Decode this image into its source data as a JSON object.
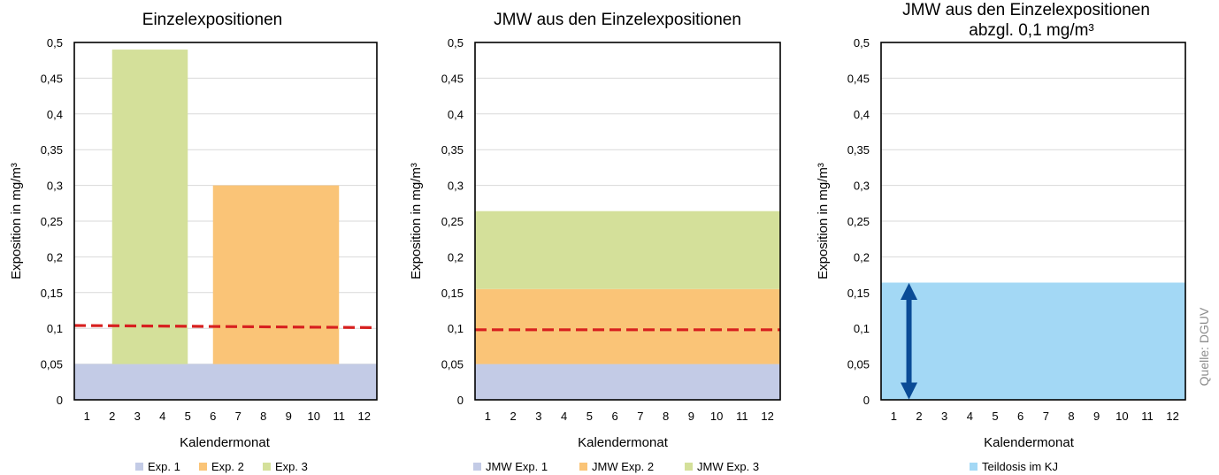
{
  "source": "Quelle: DGUV",
  "chart_data": [
    {
      "type": "bar",
      "title": "Einzelexpositionen",
      "xlabel": "Kalendermonat",
      "ylabel": "Exposition in mg/m³",
      "ylim": [
        0,
        0.5
      ],
      "y_ticks": [
        "0",
        "0,05",
        "0,1",
        "0,15",
        "0,2",
        "0,25",
        "0,3",
        "0,35",
        "0,4",
        "0,45",
        "0,5"
      ],
      "x_ticks": [
        "1",
        "2",
        "3",
        "4",
        "5",
        "6",
        "7",
        "8",
        "9",
        "10",
        "11",
        "12"
      ],
      "grid": true,
      "bars": [
        {
          "name": "Exp. 1",
          "color": "#c3cbe6",
          "from_month": 1,
          "to_month": 12,
          "y0": 0,
          "y1": 0.05
        },
        {
          "name": "Exp. 3",
          "color": "#d4e09a",
          "from_month": 3,
          "to_month": 5,
          "y0": 0.05,
          "y1": 0.49
        },
        {
          "name": "Exp. 2",
          "color": "#fac477",
          "from_month": 7,
          "to_month": 11,
          "y0": 0.05,
          "y1": 0.3
        }
      ],
      "reference_line": {
        "color": "#d7201f",
        "y_start": 0.104,
        "y_end": 0.101
      },
      "legend": [
        {
          "label": "Exp. 1",
          "color": "#c3cbe6"
        },
        {
          "label": "Exp. 2",
          "color": "#fac477"
        },
        {
          "label": "Exp. 3",
          "color": "#d4e09a"
        }
      ]
    },
    {
      "type": "area",
      "title": "JMW aus den Einzelexpositionen",
      "xlabel": "Kalendermonat",
      "ylabel": "Exposition in mg/m³",
      "ylim": [
        0,
        0.5
      ],
      "y_ticks": [
        "0",
        "0,05",
        "0,1",
        "0,15",
        "0,2",
        "0,25",
        "0,3",
        "0,35",
        "0,4",
        "0,45",
        "0,5"
      ],
      "x_ticks": [
        "1",
        "2",
        "3",
        "4",
        "5",
        "6",
        "7",
        "8",
        "9",
        "10",
        "11",
        "12"
      ],
      "grid": true,
      "bands": [
        {
          "name": "JMW Exp. 1",
          "color": "#c3cbe6",
          "y0": 0,
          "y1": 0.05
        },
        {
          "name": "JMW Exp. 2",
          "color": "#fac477",
          "y0": 0.05,
          "y1": 0.155
        },
        {
          "name": "JMW Exp. 3",
          "color": "#d4e09a",
          "y0": 0.155,
          "y1": 0.264
        }
      ],
      "reference_line": {
        "color": "#d7201f",
        "y_start": 0.098,
        "y_end": 0.098
      },
      "legend": [
        {
          "label": "JMW Exp. 1",
          "color": "#c3cbe6"
        },
        {
          "label": "JMW Exp. 2",
          "color": "#fac477"
        },
        {
          "label": "JMW Exp. 3",
          "color": "#d4e09a"
        }
      ]
    },
    {
      "type": "area",
      "title": "JMW aus den Einzelexpositionen",
      "subtitle": "abzgl. 0,1 mg/m³",
      "xlabel": "Kalendermonat",
      "ylabel": "Exposition in mg/m³",
      "ylim": [
        0,
        0.5
      ],
      "y_ticks": [
        "0",
        "0,05",
        "0,1",
        "0,15",
        "0,2",
        "0,25",
        "0,3",
        "0,35",
        "0,4",
        "0,45",
        "0,5"
      ],
      "x_ticks": [
        "1",
        "2",
        "3",
        "4",
        "5",
        "6",
        "7",
        "8",
        "9",
        "10",
        "11",
        "12"
      ],
      "grid": true,
      "bands": [
        {
          "name": "Teildosis im KJ",
          "color": "#a3d8f5",
          "y0": 0,
          "y1": 0.164
        }
      ],
      "arrow": {
        "color": "#0a4b96",
        "month": 1.6,
        "y0": 0,
        "y1": 0.164
      },
      "legend": [
        {
          "label": "Teildosis im KJ",
          "color": "#a3d8f5"
        }
      ]
    }
  ]
}
